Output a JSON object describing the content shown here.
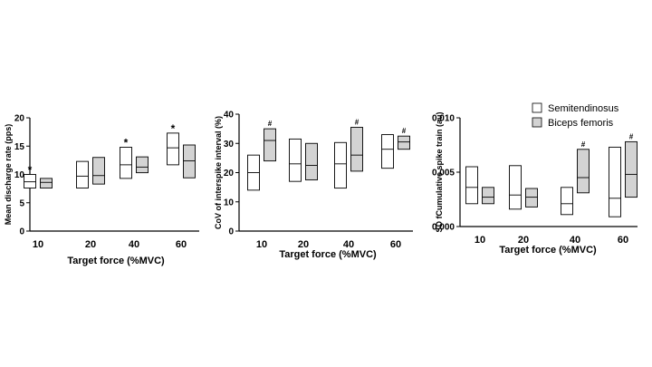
{
  "legend": {
    "position": "top-right",
    "items": [
      {
        "name": "Semitendinosus",
        "color": "#ffffff"
      },
      {
        "name": "Biceps femoris",
        "color": "#d3d3d3"
      }
    ]
  },
  "chart_data": [
    {
      "type": "box",
      "xlabel": "Target force (%MVC)",
      "ylabel": "Mean discharge rate (pps)",
      "categories": [
        "10",
        "20",
        "40",
        "60"
      ],
      "ylim": [
        0,
        20
      ],
      "yticks": [
        "0",
        "5",
        "10",
        "15",
        "20"
      ],
      "series": [
        {
          "name": "Semitendinosus",
          "boxes": [
            {
              "q1": 7.6,
              "median": 8.7,
              "q3": 10.0
            },
            {
              "q1": 7.6,
              "median": 9.7,
              "q3": 12.3
            },
            {
              "q1": 9.3,
              "median": 11.7,
              "q3": 14.8
            },
            {
              "q1": 11.7,
              "median": 14.7,
              "q3": 17.3
            }
          ]
        },
        {
          "name": "Biceps femoris",
          "boxes": [
            {
              "q1": 7.6,
              "median": 8.6,
              "q3": 9.3
            },
            {
              "q1": 8.3,
              "median": 9.8,
              "q3": 13.0
            },
            {
              "q1": 10.3,
              "median": 11.3,
              "q3": 13.1
            },
            {
              "q1": 9.4,
              "median": 12.4,
              "q3": 15.2
            }
          ]
        }
      ],
      "annotations": [
        {
          "category": "10",
          "series": 0,
          "text": "*"
        },
        {
          "category": "40",
          "series": 0,
          "text": "*"
        },
        {
          "category": "60",
          "series": 0,
          "text": "*"
        }
      ]
    },
    {
      "type": "box",
      "xlabel": "Target force (%MVC)",
      "ylabel": "CoV of interspike interval (%)",
      "categories": [
        "10",
        "20",
        "40",
        "60"
      ],
      "ylim": [
        0,
        40
      ],
      "yticks": [
        "0",
        "10",
        "20",
        "30",
        "40"
      ],
      "series": [
        {
          "name": "Semitendinosus",
          "boxes": [
            {
              "q1": 14,
              "median": 20,
              "q3": 26
            },
            {
              "q1": 17,
              "median": 23,
              "q3": 31.5
            },
            {
              "q1": 14.7,
              "median": 23,
              "q3": 30.3
            },
            {
              "q1": 21.5,
              "median": 28,
              "q3": 33
            }
          ]
        },
        {
          "name": "Biceps femoris",
          "boxes": [
            {
              "q1": 24,
              "median": 31,
              "q3": 35
            },
            {
              "q1": 17.5,
              "median": 22.5,
              "q3": 30
            },
            {
              "q1": 20.5,
              "median": 26,
              "q3": 35.5
            },
            {
              "q1": 28,
              "median": 30.5,
              "q3": 32.5
            }
          ]
        }
      ],
      "annotations": [
        {
          "category": "10",
          "series": 1,
          "text": "#"
        },
        {
          "category": "40",
          "series": 1,
          "text": "#"
        },
        {
          "category": "60",
          "series": 1,
          "text": "#"
        }
      ]
    },
    {
      "type": "box",
      "xlabel": "Target force (%MVC)",
      "ylabel": "SD fCumulative spike train (au)",
      "categories": [
        "10",
        "20",
        "40",
        "60"
      ],
      "ylim": [
        0,
        0.01
      ],
      "yticks": [
        "0.000",
        "0.005",
        "0.010"
      ],
      "series": [
        {
          "name": "Semitendinosus",
          "boxes": [
            {
              "q1": 0.0021,
              "median": 0.0036,
              "q3": 0.0055
            },
            {
              "q1": 0.0016,
              "median": 0.0029,
              "q3": 0.0056
            },
            {
              "q1": 0.0011,
              "median": 0.0021,
              "q3": 0.0036
            },
            {
              "q1": 0.0009,
              "median": 0.0026,
              "q3": 0.0073
            }
          ]
        },
        {
          "name": "Biceps femoris",
          "boxes": [
            {
              "q1": 0.0021,
              "median": 0.0027,
              "q3": 0.0036
            },
            {
              "q1": 0.0018,
              "median": 0.0027,
              "q3": 0.0035
            },
            {
              "q1": 0.0031,
              "median": 0.0045,
              "q3": 0.0071
            },
            {
              "q1": 0.0027,
              "median": 0.0048,
              "q3": 0.0078
            }
          ]
        }
      ],
      "annotations": [
        {
          "category": "40",
          "series": 1,
          "text": "#"
        },
        {
          "category": "60",
          "series": 1,
          "text": "#"
        }
      ]
    }
  ]
}
